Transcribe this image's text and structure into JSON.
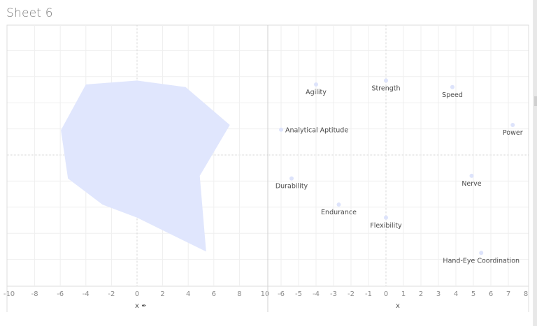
{
  "sheet": {
    "title": "Sheet 6"
  },
  "colors": {
    "fill": "#e0e6fd",
    "point": "#dde3fb",
    "grid": "#efefef",
    "zeroline": "#d6d6d6",
    "axis_text": "#8c8c8c",
    "label_text": "#4a4a4a"
  },
  "chart_data": [
    {
      "type": "area",
      "name": "left-pane-polygon",
      "xlabel": "x",
      "xlabel_icon": "pin-icon",
      "xlim": [
        -10,
        10
      ],
      "xticks": [
        "-10",
        "-8",
        "-6",
        "-4",
        "-2",
        "0",
        "2",
        "4",
        "6",
        "8",
        "10"
      ],
      "ylim": [
        -5,
        5
      ],
      "grid": true,
      "polygon": [
        {
          "x": -4.0,
          "y": 2.7
        },
        {
          "x": 0.0,
          "y": 2.85
        },
        {
          "x": 3.8,
          "y": 2.6
        },
        {
          "x": 7.25,
          "y": 1.15
        },
        {
          "x": 4.9,
          "y": -0.8
        },
        {
          "x": 5.4,
          "y": -3.7
        },
        {
          "x": 0.0,
          "y": -2.4
        },
        {
          "x": -2.7,
          "y": -1.9
        },
        {
          "x": -5.4,
          "y": -0.9
        },
        {
          "x": -5.95,
          "y": 0.95
        }
      ]
    },
    {
      "type": "scatter",
      "name": "right-pane-labels",
      "xlabel": "x",
      "xlim": [
        -6.76,
        8
      ],
      "xticks": [
        "-6",
        "-5",
        "-4",
        "-3",
        "-2",
        "-1",
        "0",
        "1",
        "2",
        "3",
        "4",
        "5",
        "6",
        "7",
        "8"
      ],
      "ylim": [
        -5,
        5
      ],
      "grid": true,
      "points": [
        {
          "label": "Agility",
          "x": -4.0,
          "y": 2.7
        },
        {
          "label": "Strength",
          "x": 0.0,
          "y": 2.85
        },
        {
          "label": "Speed",
          "x": 3.8,
          "y": 2.6
        },
        {
          "label": "Analytical Aptitude",
          "x": -6.0,
          "y": 0.97
        },
        {
          "label": "Power",
          "x": 7.25,
          "y": 1.15
        },
        {
          "label": "Durability",
          "x": -5.4,
          "y": -0.9
        },
        {
          "label": "Nerve",
          "x": 4.9,
          "y": -0.8
        },
        {
          "label": "Endurance",
          "x": -2.7,
          "y": -1.9
        },
        {
          "label": "Flexibility",
          "x": 0.0,
          "y": -2.4
        },
        {
          "label": "Hand-Eye Coordination",
          "x": 5.45,
          "y": -3.75
        }
      ]
    }
  ]
}
